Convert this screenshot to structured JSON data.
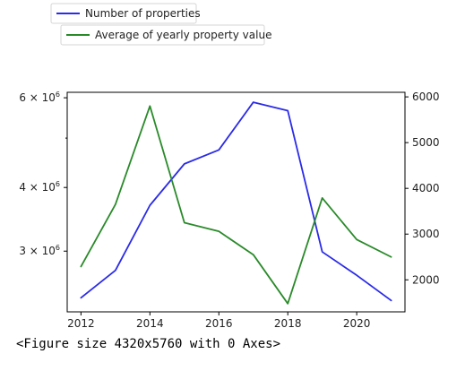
{
  "chart_data": {
    "type": "line",
    "x": [
      2012,
      2013,
      2014,
      2015,
      2016,
      2017,
      2018,
      2019,
      2020,
      2021
    ],
    "series": [
      {
        "name": "Number of properties",
        "axis": "left",
        "color": "#2b2be8",
        "values": [
          2430000,
          2750000,
          3690000,
          4450000,
          4740000,
          5880000,
          5660000,
          2990000,
          2690000,
          2400000
        ]
      },
      {
        "name": "Average of yearly property value",
        "axis": "right",
        "color": "#2a8a2a",
        "values": [
          2290,
          3650,
          5800,
          3250,
          3060,
          2550,
          1480,
          3790,
          2880,
          2500
        ]
      }
    ],
    "x_ticks": [
      2012,
      2014,
      2016,
      2018,
      2020
    ],
    "x_tick_labels": [
      "2012",
      "2014",
      "2016",
      "2018",
      "2020"
    ],
    "xlim": [
      2011.6,
      2021.4
    ],
    "y_left_scale": "log",
    "y_left_ticks": [
      3000000,
      4000000,
      6000000
    ],
    "y_left_tick_labels": [
      {
        "mantissa": "3",
        "base": "10",
        "exp": "6"
      },
      {
        "mantissa": "4",
        "base": "10",
        "exp": "6"
      },
      {
        "mantissa": "6",
        "base": "10",
        "exp": "6"
      }
    ],
    "y_left_minor_ticks": [
      5000000
    ],
    "y_left_lim": [
      2280000,
      6150000
    ],
    "y_right_scale": "linear",
    "y_right_ticks": [
      2000,
      3000,
      4000,
      5000,
      6000
    ],
    "y_right_tick_labels": [
      "2000",
      "3000",
      "4000",
      "5000",
      "6000"
    ],
    "y_right_lim": [
      1300,
      6100
    ],
    "grid": false,
    "legend": "separate boxes above the plot, top-left"
  },
  "caption": "<Figure size 4320x5760 with 0 Axes>"
}
